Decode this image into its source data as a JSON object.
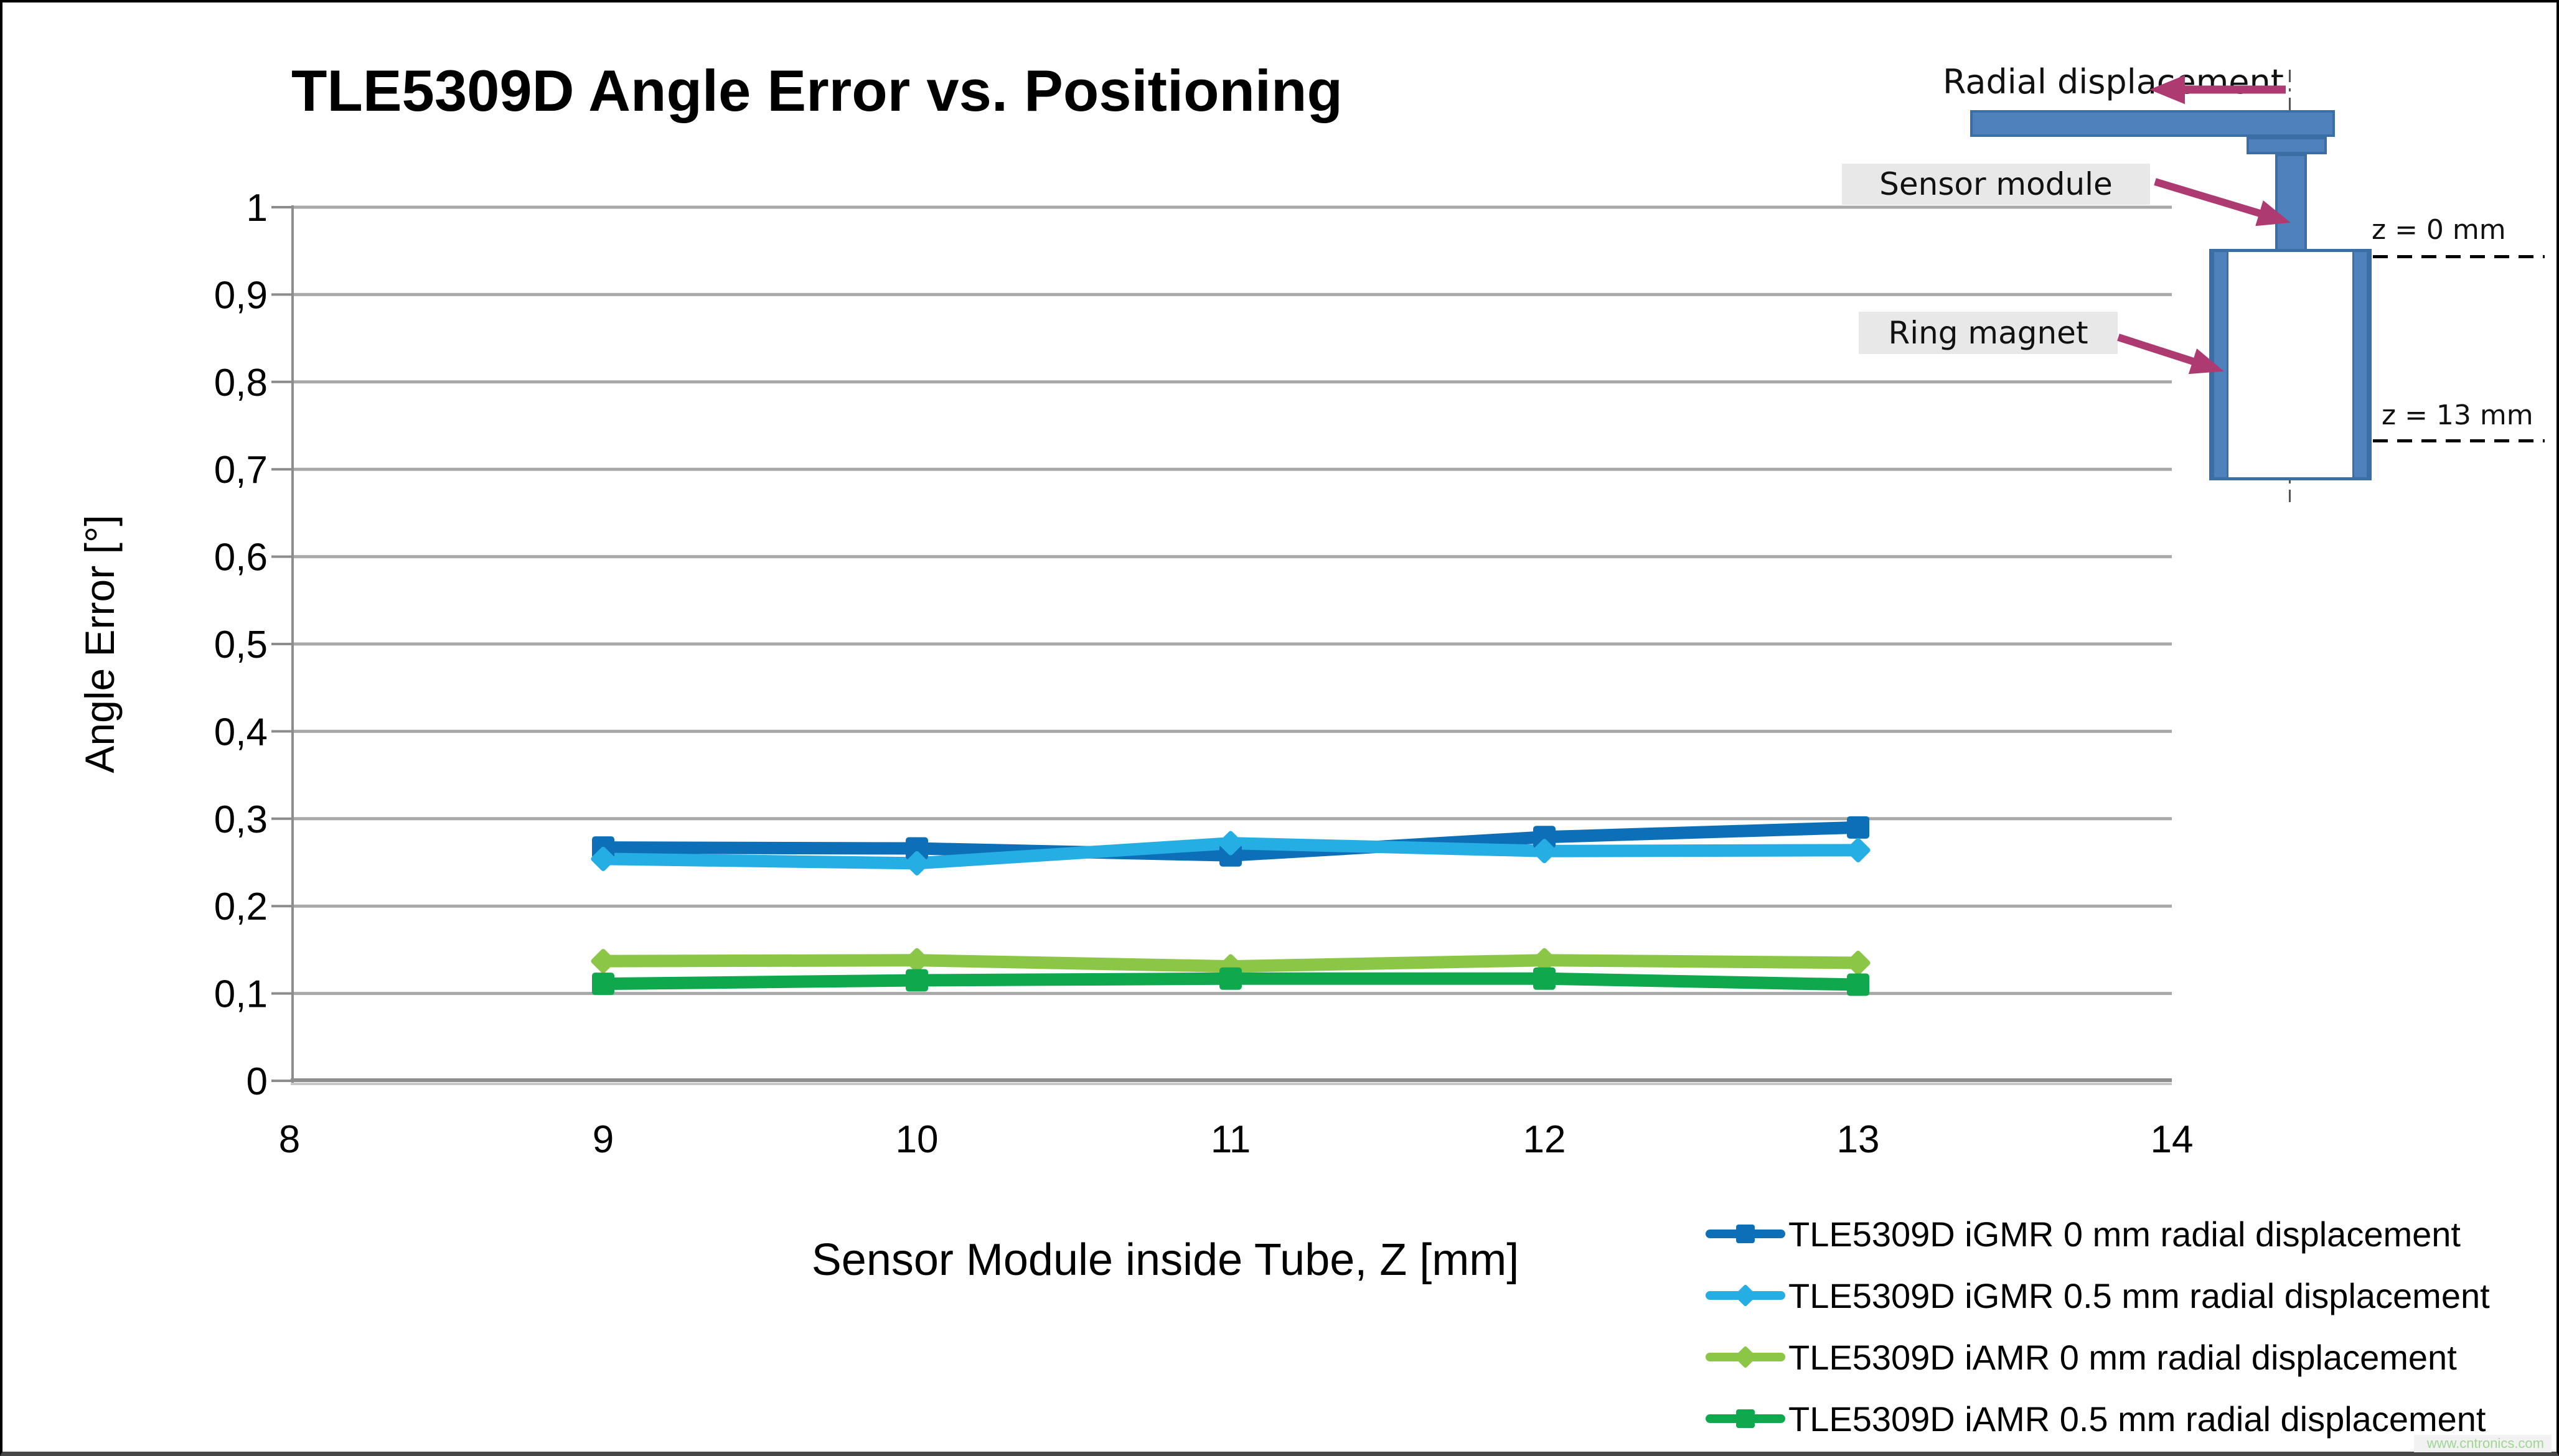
{
  "title": "TLE5309D Angle Error vs. Positioning",
  "watermark": "www.cntronics.com",
  "chart_data": {
    "type": "line",
    "title": "TLE5309D Angle Error vs. Positioning",
    "xlabel": "Sensor Module inside Tube, Z [mm]",
    "ylabel": "Angle Error [°]",
    "xlim": [
      8,
      14
    ],
    "ylim": [
      0,
      1
    ],
    "x_tick_labels": [
      "8",
      "9",
      "10",
      "11",
      "12",
      "13",
      "14"
    ],
    "y_tick_labels": [
      "0",
      "0,1",
      "0,2",
      "0,3",
      "0,4",
      "0,5",
      "0,6",
      "0,7",
      "0,8",
      "0,9",
      "1"
    ],
    "grid": "horizontal gridlines every 0.1",
    "legend_position": "bottom-right",
    "x": [
      9,
      10,
      11,
      12,
      13
    ],
    "series": [
      {
        "name": "TLE5309D iGMR 0 mm radial displacement",
        "color": "#0d6fb8",
        "marker": "square",
        "values": [
          0.267,
          0.266,
          0.258,
          0.279,
          0.29
        ]
      },
      {
        "name": "TLE5309D iGMR 0.5 mm radial displacement",
        "color": "#25aee4",
        "marker": "diamond",
        "values": [
          0.254,
          0.249,
          0.272,
          0.263,
          0.264
        ]
      },
      {
        "name": "TLE5309D iAMR 0 mm radial displacement",
        "color": "#8cc646",
        "marker": "diamond",
        "values": [
          0.137,
          0.138,
          0.131,
          0.138,
          0.135
        ]
      },
      {
        "name": "TLE5309D iAMR 0.5 mm radial displacement",
        "color": "#0fa84d",
        "marker": "square",
        "values": [
          0.111,
          0.115,
          0.117,
          0.117,
          0.11
        ]
      }
    ]
  },
  "diagram": {
    "radial_label": "Radial displacement",
    "sensor_label": "Sensor module",
    "magnet_label": "Ring magnet",
    "z_top_label": "z = 0 mm",
    "z_bottom_label": "z = 13 mm",
    "shape_fill": "#4f81bd",
    "shape_border": "#3a6ea5",
    "arrow_color": "#ae3a72",
    "label_bg": "#e8e8e8"
  }
}
